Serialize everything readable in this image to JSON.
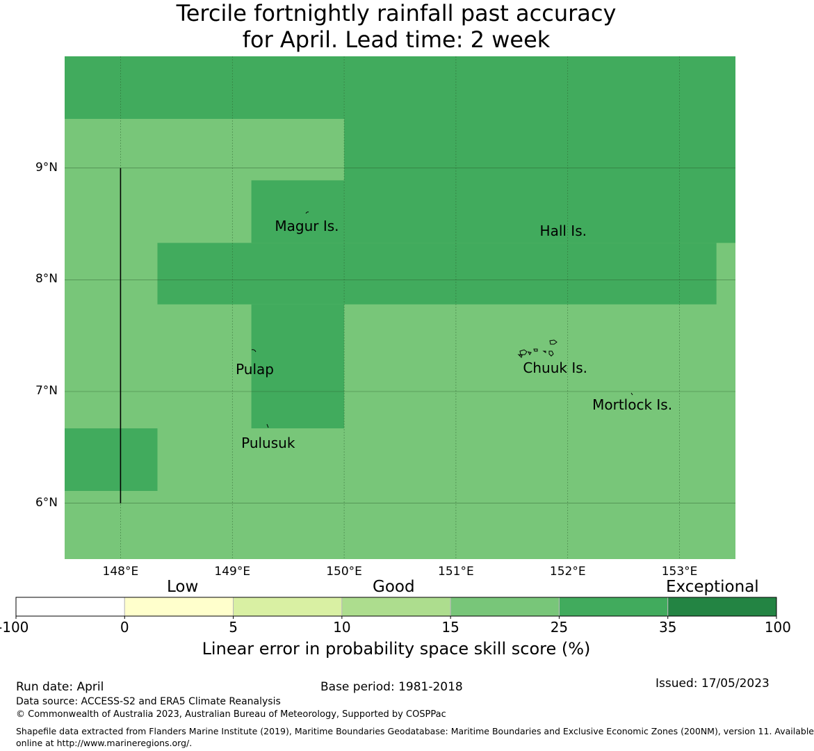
{
  "title_line1": "Tercile fortnightly rainfall past accuracy",
  "title_line2": "for April. Lead time: 2 week",
  "map": {
    "lon_range": [
      147.5,
      153.5
    ],
    "lat_range": [
      5.5,
      10.0
    ],
    "grid_lines": true,
    "lat_ticks": [
      {
        "value": 9,
        "label": "9°N"
      },
      {
        "value": 8,
        "label": "8°N"
      },
      {
        "value": 7,
        "label": "7°N"
      },
      {
        "value": 6,
        "label": "6°N"
      }
    ],
    "lon_ticks": [
      {
        "value": 148,
        "label": "148°E"
      },
      {
        "value": 149,
        "label": "149°E"
      },
      {
        "value": 150,
        "label": "150°E"
      },
      {
        "value": 151,
        "label": "151°E"
      },
      {
        "value": 152,
        "label": "152°E"
      },
      {
        "value": 153,
        "label": "153°E"
      }
    ],
    "background_category": "15-25",
    "background_color": "#78c679",
    "skill_cells": [
      {
        "category": "25-35",
        "lon": [
          147.5,
          150.0
        ],
        "lat": [
          9.44,
          10.0
        ]
      },
      {
        "category": "25-35",
        "lon": [
          150.0,
          153.5
        ],
        "lat": [
          8.33,
          10.0
        ]
      },
      {
        "category": "25-35",
        "lon": [
          149.17,
          150.0
        ],
        "lat": [
          8.33,
          8.89
        ]
      },
      {
        "category": "25-35",
        "lon": [
          148.33,
          153.33
        ],
        "lat": [
          7.78,
          8.33
        ]
      },
      {
        "category": "25-35",
        "lon": [
          149.17,
          150.0
        ],
        "lat": [
          6.67,
          7.78
        ]
      },
      {
        "category": "25-35",
        "lon": [
          147.5,
          148.33
        ],
        "lat": [
          6.11,
          6.67
        ]
      }
    ],
    "boundary_line": {
      "lon": 148.0,
      "lat": [
        6.0,
        9.0
      ]
    },
    "places": [
      {
        "name": "Magur Is.",
        "lon": 149.38,
        "lat": 8.48
      },
      {
        "name": "Hall Is.",
        "lon": 151.75,
        "lat": 8.44
      },
      {
        "name": "Pulap",
        "lon": 149.03,
        "lat": 7.2
      },
      {
        "name": "Chuuk Is.",
        "lon": 151.6,
        "lat": 7.21
      },
      {
        "name": "Mortlock Is.",
        "lon": 152.22,
        "lat": 6.88
      },
      {
        "name": "Pulusuk",
        "lon": 149.08,
        "lat": 6.54
      }
    ]
  },
  "colorbar": {
    "heads": {
      "low": "Low",
      "good": "Good",
      "exceptional": "Exceptional"
    },
    "segments": [
      {
        "from": "-100",
        "to": "0",
        "color": "#ffffff"
      },
      {
        "from": "0",
        "to": "5",
        "color": "#ffffcc"
      },
      {
        "from": "5",
        "to": "10",
        "color": "#d9f0a3"
      },
      {
        "from": "10",
        "to": "15",
        "color": "#addd8e"
      },
      {
        "from": "15",
        "to": "25",
        "color": "#78c679"
      },
      {
        "from": "25",
        "to": "35",
        "color": "#41ab5d"
      },
      {
        "from": "35",
        "to": "100",
        "color": "#238443"
      }
    ],
    "ticks": [
      "-100",
      "0",
      "5",
      "10",
      "15",
      "25",
      "35",
      "100"
    ],
    "label": "Linear error in probability space skill score (%)"
  },
  "footer": {
    "run_date": "Run date: April",
    "base_period": "Base period: 1981-2018",
    "issued": "Issued: 17/05/2023",
    "data_source": "Data source: ACCESS-S2 and ERA5 Climate Reanalysis",
    "copyright": "© Commonwealth of Australia 2023, Australian Bureau of Meteorology, Supported by COSPPac",
    "shapefile_line1": "Shapefile data extracted from Flanders Marine Institute (2019), Maritime Boundaries Geodatabase: Maritime Boundaries and Exclusive Economic Zones (200NM), version 11. Available",
    "shapefile_line2": "online at http://www.marineregions.org/."
  }
}
